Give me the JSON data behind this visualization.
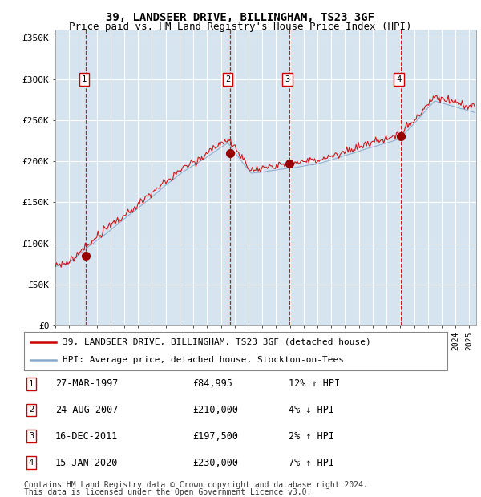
{
  "title": "39, LANDSEER DRIVE, BILLINGHAM, TS23 3GF",
  "subtitle": "Price paid vs. HM Land Registry's House Price Index (HPI)",
  "ylabel_ticks": [
    "£0",
    "£50K",
    "£100K",
    "£150K",
    "£200K",
    "£250K",
    "£300K",
    "£350K"
  ],
  "ytick_values": [
    0,
    50000,
    100000,
    150000,
    200000,
    250000,
    300000,
    350000
  ],
  "ylim": [
    0,
    360000
  ],
  "xlim_start": 1995.0,
  "xlim_end": 2025.5,
  "plot_bg_color": "#d6e4f0",
  "grid_color": "#ffffff",
  "red_line_color": "#cc0000",
  "blue_line_color": "#88aacc",
  "sale_marker_color": "#990000",
  "dashed_line_color": "#cc0000",
  "legend_label_red": "39, LANDSEER DRIVE, BILLINGHAM, TS23 3GF (detached house)",
  "legend_label_blue": "HPI: Average price, detached house, Stockton-on-Tees",
  "sales": [
    {
      "num": 1,
      "date_x": 1997.23,
      "price": 84995,
      "label": "27-MAR-1997",
      "price_str": "£84,995",
      "hpi_str": "12% ↑ HPI"
    },
    {
      "num": 2,
      "date_x": 2007.65,
      "price": 210000,
      "label": "24-AUG-2007",
      "price_str": "£210,000",
      "hpi_str": "4% ↓ HPI"
    },
    {
      "num": 3,
      "date_x": 2011.96,
      "price": 197500,
      "label": "16-DEC-2011",
      "price_str": "£197,500",
      "hpi_str": "2% ↑ HPI"
    },
    {
      "num": 4,
      "date_x": 2020.04,
      "price": 230000,
      "label": "15-JAN-2020",
      "price_str": "£230,000",
      "hpi_str": "7% ↑ HPI"
    }
  ],
  "footer1": "Contains HM Land Registry data © Crown copyright and database right 2024.",
  "footer2": "This data is licensed under the Open Government Licence v3.0.",
  "title_fontsize": 10,
  "subtitle_fontsize": 9,
  "tick_fontsize": 8,
  "legend_fontsize": 8,
  "table_fontsize": 8.5,
  "footer_fontsize": 7
}
